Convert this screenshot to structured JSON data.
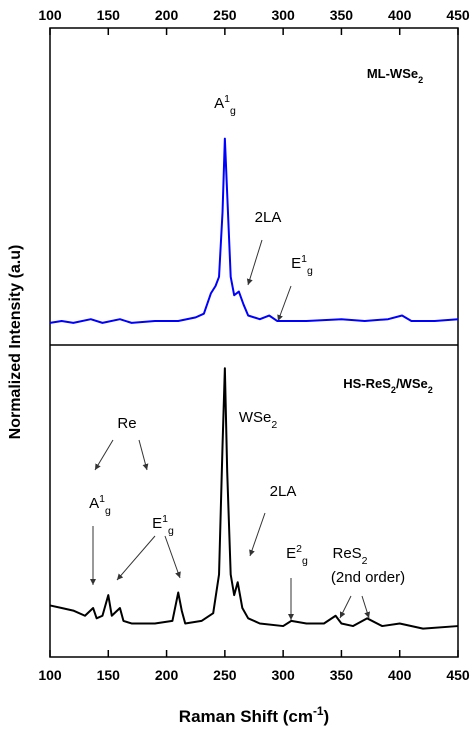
{
  "chart_data": [
    {
      "type": "line",
      "label": [
        {
          "t": "ML-WSe"
        },
        {
          "t": "2",
          "s": "sub"
        }
      ],
      "xlim": [
        100,
        450
      ],
      "xticks": [
        100,
        150,
        200,
        250,
        300,
        350,
        400,
        450
      ],
      "xticks_position": "top",
      "ylim": [
        -0.12,
        1.6
      ],
      "x": [
        100,
        110,
        120,
        135,
        145,
        160,
        170,
        190,
        210,
        225,
        232,
        238,
        242,
        245,
        248,
        250,
        252,
        255,
        258,
        262,
        266,
        270,
        280,
        288,
        295,
        320,
        350,
        370,
        390,
        402,
        410,
        430,
        450
      ],
      "series": [
        {
          "color": "#0000ff",
          "values": [
            0.0,
            0.01,
            0.0,
            0.02,
            0.0,
            0.02,
            0.0,
            0.01,
            0.01,
            0.03,
            0.05,
            0.16,
            0.2,
            0.25,
            0.6,
            1.0,
            0.7,
            0.25,
            0.15,
            0.17,
            0.1,
            0.04,
            0.02,
            0.04,
            0.01,
            0.01,
            0.02,
            0.01,
            0.02,
            0.04,
            0.01,
            0.01,
            0.02
          ]
        }
      ],
      "annotations": [
        [
          {
            "t": "A"
          },
          {
            "t": "1",
            "s": "sup"
          },
          {
            "t": "g",
            "s": "sub"
          }
        ],
        [
          {
            "t": "2LA"
          }
        ],
        [
          {
            "t": "E"
          },
          {
            "t": "1",
            "s": "sup"
          },
          {
            "t": "g",
            "s": "sub"
          }
        ]
      ]
    },
    {
      "type": "line",
      "label": [
        {
          "t": "HS-ReS"
        },
        {
          "t": "2",
          "s": "sub"
        },
        {
          "t": "/WSe"
        },
        {
          "t": "2",
          "s": "sub"
        }
      ],
      "xlabel": [
        {
          "t": "Raman Shift (cm"
        },
        {
          "t": "-1",
          "s": "sup"
        },
        {
          "t": ")"
        }
      ],
      "ylabel": "Normalized Intensity (a.u)",
      "xlim": [
        100,
        450
      ],
      "xticks": [
        100,
        150,
        200,
        250,
        300,
        350,
        400,
        450
      ],
      "xticks_position": "bottom",
      "ylim": [
        -0.12,
        1.09
      ],
      "x": [
        100,
        110,
        120,
        130,
        137,
        140,
        145,
        150,
        153,
        160,
        163,
        170,
        190,
        205,
        210,
        213,
        216,
        230,
        240,
        245,
        248,
        250,
        252,
        255,
        258,
        261,
        265,
        270,
        280,
        300,
        307,
        320,
        335,
        345,
        350,
        360,
        372,
        385,
        400,
        420,
        450
      ],
      "series": [
        {
          "color": "#000000",
          "values": [
            0.08,
            0.07,
            0.06,
            0.04,
            0.07,
            0.03,
            0.04,
            0.12,
            0.04,
            0.07,
            0.02,
            0.01,
            0.01,
            0.02,
            0.13,
            0.06,
            0.01,
            0.02,
            0.05,
            0.2,
            0.7,
            1.0,
            0.6,
            0.2,
            0.12,
            0.17,
            0.07,
            0.03,
            0.01,
            0.0,
            0.02,
            0.01,
            0.01,
            0.04,
            0.01,
            0.0,
            0.03,
            0.0,
            0.01,
            -0.01,
            0.0
          ]
        }
      ],
      "annotations": [
        [
          {
            "t": "Re"
          }
        ],
        [
          {
            "t": "A"
          },
          {
            "t": "1",
            "s": "sup"
          },
          {
            "t": "g",
            "s": "sub"
          }
        ],
        [
          {
            "t": "E"
          },
          {
            "t": "1",
            "s": "sup"
          },
          {
            "t": "g",
            "s": "sub"
          }
        ],
        [
          {
            "t": "WSe"
          },
          {
            "t": "2",
            "s": "sub"
          }
        ],
        [
          {
            "t": "2LA"
          }
        ],
        [
          {
            "t": "E"
          },
          {
            "t": "2",
            "s": "sup"
          },
          {
            "t": "g",
            "s": "sub"
          }
        ],
        [
          {
            "t": "ReS"
          },
          {
            "t": "2",
            "s": "sub"
          }
        ],
        [
          {
            "t": "(2nd order)"
          }
        ]
      ]
    }
  ]
}
